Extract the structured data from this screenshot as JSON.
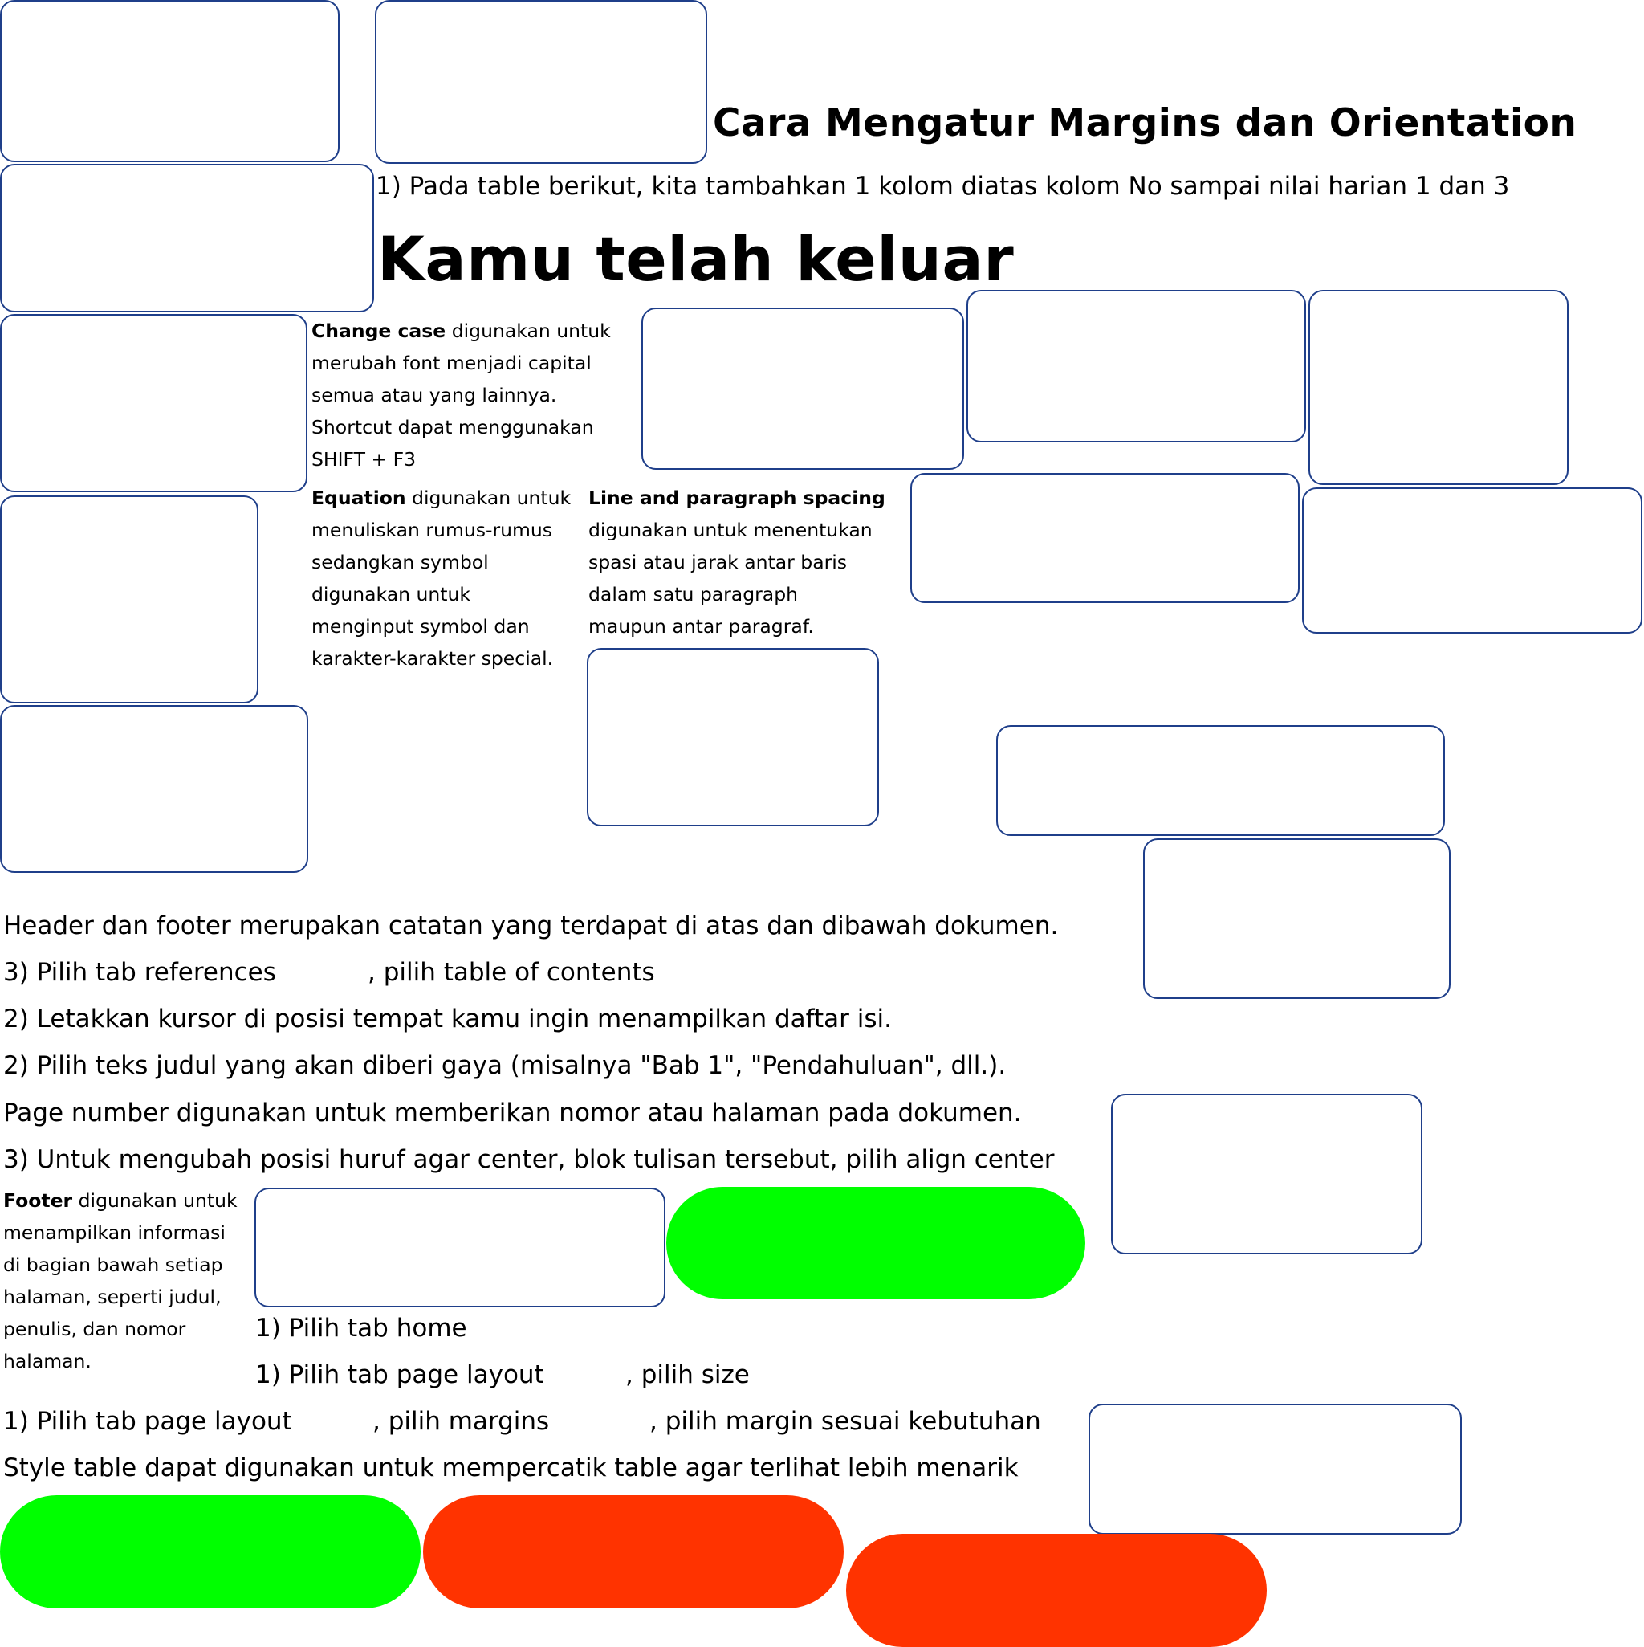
{
  "heading_margins": "Cara Mengatur Margins dan Orientation",
  "step_table_column": "1) Pada table berikut, kita tambahkan 1 kolom diatas kolom No sampai nilai harian 1 dan 3",
  "heading_exit": "Kamu telah keluar",
  "change_case": {
    "term": "Change case",
    "line1": " digunakan untuk",
    "line2": "merubah font menjadi capital",
    "line3": "semua atau yang lainnya.",
    "line4": "Shortcut dapat menggunakan",
    "line5": "SHIFT + F3"
  },
  "equation": {
    "term": "Equation",
    "line1": " digunakan untuk",
    "line2": "menuliskan rumus-rumus",
    "line3": "sedangkan symbol",
    "line4": "digunakan untuk",
    "line5": "menginput symbol dan",
    "line6": "karakter-karakter special."
  },
  "spacing": {
    "term": "Line and paragraph spacing",
    "line2": "digunakan untuk menentukan",
    "line3": "spasi atau jarak antar baris",
    "line4": "dalam satu paragraph",
    "line5": "maupun antar paragraf."
  },
  "lines": {
    "header_footer": "Header dan footer merupakan catatan yang terdapat di atas dan dibawah dokumen.",
    "references_a": "3) Pilih tab references",
    "references_b": ", pilih table of contents",
    "cursor": "2) Letakkan kursor di posisi tempat kamu ingin menampilkan daftar isi.",
    "judul": "2) Pilih teks judul yang akan diberi gaya (misalnya \"Bab 1\", \"Pendahuluan\", dll.).",
    "page_number": "Page number digunakan untuk memberikan nomor atau halaman pada dokumen.",
    "align": "3) Untuk mengubah posisi huruf agar center, blok tulisan tersebut, pilih align center",
    "home": "1) Pilih tab home",
    "size_a": "1) Pilih tab page layout",
    "size_b": ", pilih size",
    "margins_a": "1) Pilih tab page layout",
    "margins_b": ", pilih margins",
    "margins_c": ", pilih margin sesuai kebutuhan",
    "style_table": "Style table dapat digunakan untuk mempercatik table agar terlihat lebih menarik"
  },
  "footer": {
    "term": "Footer",
    "line1": " digunakan untuk",
    "line2": "menampilkan informasi",
    "line3": "di bagian bawah setiap",
    "line4": "halaman, seperti judul,",
    "line5": "penulis, dan nomor",
    "line6": "halaman."
  },
  "colors": {
    "box_border": "#1f3f8a",
    "correct": "#00ff00",
    "wrong": "#ff3300"
  }
}
